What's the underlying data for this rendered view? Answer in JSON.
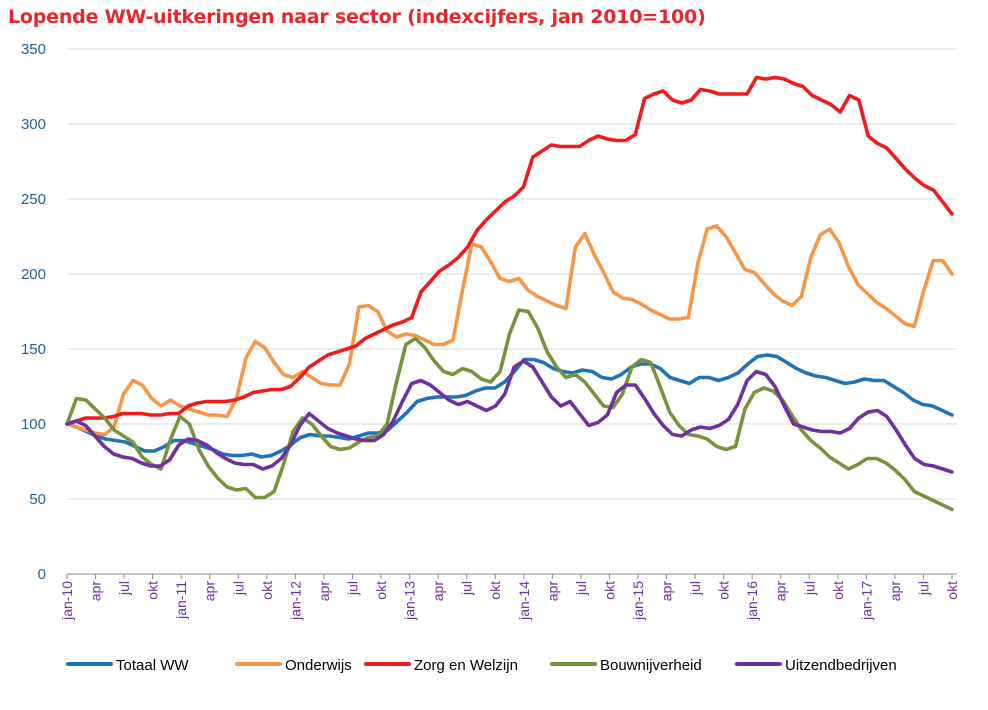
{
  "chart_data": {
    "type": "line",
    "title": "Lopende WW-uitkeringen naar sector (indexcijfers, jan 2010=100)",
    "xlabel": "",
    "ylabel": "",
    "ylim": [
      0,
      350
    ],
    "yticks": [
      0,
      50,
      100,
      150,
      200,
      250,
      300,
      350
    ],
    "grid": true,
    "legend": "bottom",
    "x_start": "jan-10",
    "x_end": "okt-17",
    "x_tick_labels": [
      "jan-10",
      "apr",
      "jul",
      "okt",
      "jan-11",
      "apr",
      "jul",
      "okt",
      "jan-12",
      "apr",
      "jul",
      "okt",
      "jan-13",
      "apr",
      "jul",
      "okt",
      "jan-14",
      "apr",
      "jul",
      "okt",
      "jan-15",
      "apr",
      "jul",
      "okt",
      "jan-16",
      "apr",
      "jul",
      "okt",
      "jan-17",
      "apr",
      "jul",
      "okt"
    ],
    "series": [
      {
        "name": "Totaal WW",
        "color": "#1f74b7",
        "values": [
          100,
          98,
          95,
          92,
          90,
          89,
          88,
          85,
          82,
          82,
          85,
          89,
          89,
          87,
          85,
          83,
          80,
          79,
          79,
          80,
          78,
          79,
          82,
          86,
          91,
          93,
          92,
          92,
          91,
          90,
          92,
          94,
          94,
          96,
          102,
          108,
          115,
          117,
          118,
          118,
          118,
          119,
          122,
          124,
          124,
          128,
          135,
          143,
          143,
          141,
          137,
          135,
          134,
          136,
          135,
          131,
          130,
          133,
          138,
          140,
          140,
          137,
          131,
          129,
          127,
          131,
          131,
          129,
          131,
          134,
          140,
          145,
          146,
          145,
          141,
          137,
          134,
          132,
          131,
          129,
          127,
          128,
          130,
          129,
          129,
          125,
          121,
          116,
          113,
          112,
          109,
          106
        ]
      },
      {
        "name": "Onderwijs",
        "color": "#f79646",
        "values": [
          100,
          98,
          96,
          94,
          93,
          98,
          120,
          129,
          126,
          117,
          112,
          116,
          112,
          110,
          108,
          106,
          106,
          105,
          117,
          144,
          155,
          151,
          141,
          133,
          131,
          135,
          131,
          127,
          126,
          126,
          140,
          178,
          179,
          175,
          162,
          158,
          160,
          159,
          156,
          153,
          153,
          156,
          189,
          220,
          218,
          208,
          197,
          195,
          197,
          189,
          185,
          182,
          179,
          177,
          218,
          227,
          213,
          201,
          188,
          184,
          183,
          180,
          176,
          173,
          170,
          170,
          171,
          207,
          230,
          232,
          225,
          214,
          203,
          201,
          194,
          187,
          182,
          179,
          185,
          211,
          226,
          230,
          221,
          205,
          193,
          187,
          181,
          177,
          172,
          167,
          165,
          189,
          209,
          209,
          200
        ]
      },
      {
        "name": "Zorg en Welzijn",
        "color": "#ee1c1c",
        "values": [
          100,
          102,
          104,
          104,
          104,
          105,
          107,
          107,
          107,
          106,
          106,
          107,
          107,
          112,
          114,
          115,
          115,
          115,
          116,
          118,
          121,
          122,
          123,
          123,
          125,
          131,
          138,
          142,
          146,
          148,
          150,
          152,
          157,
          160,
          163,
          166,
          168,
          171,
          188,
          195,
          202,
          206,
          211,
          218,
          229,
          236,
          242,
          248,
          252,
          258,
          278,
          282,
          286,
          285,
          285,
          285,
          289,
          292,
          290,
          289,
          289,
          293,
          317,
          320,
          322,
          316,
          314,
          316,
          323,
          322,
          320,
          320,
          320,
          320,
          331,
          330,
          331,
          330,
          327,
          325,
          319,
          316,
          313,
          308,
          319,
          316,
          292,
          287,
          284,
          277,
          270,
          264,
          259,
          256,
          248,
          240
        ]
      },
      {
        "name": "Bouwnijverheid",
        "color": "#77933c",
        "values": [
          100,
          117,
          116,
          110,
          104,
          96,
          92,
          88,
          78,
          73,
          70,
          90,
          105,
          100,
          83,
          72,
          64,
          58,
          56,
          57,
          51,
          51,
          55,
          73,
          95,
          104,
          100,
          92,
          85,
          83,
          84,
          88,
          91,
          92,
          100,
          128,
          153,
          157,
          151,
          142,
          135,
          133,
          137,
          135,
          130,
          128,
          135,
          160,
          176,
          175,
          164,
          148,
          138,
          131,
          133,
          128,
          120,
          112,
          111,
          120,
          138,
          143,
          141,
          125,
          108,
          99,
          93,
          92,
          90,
          85,
          83,
          85,
          110,
          121,
          124,
          122,
          116,
          106,
          96,
          89,
          84,
          78,
          74,
          70,
          73,
          77,
          77,
          74,
          69,
          63,
          55,
          52,
          49,
          46,
          43
        ]
      },
      {
        "name": "Uitzendbedrijven",
        "color": "#7030a0",
        "values": [
          100,
          102,
          99,
          92,
          85,
          80,
          78,
          77,
          74,
          72,
          72,
          76,
          86,
          90,
          89,
          86,
          81,
          77,
          74,
          73,
          73,
          70,
          72,
          77,
          86,
          99,
          107,
          102,
          97,
          94,
          92,
          90,
          89,
          89,
          93,
          102,
          115,
          127,
          129,
          126,
          121,
          116,
          113,
          115,
          112,
          109,
          112,
          120,
          138,
          142,
          138,
          128,
          118,
          112,
          115,
          107,
          99,
          101,
          106,
          121,
          126,
          126,
          117,
          107,
          99,
          93,
          92,
          96,
          98,
          97,
          99,
          103,
          113,
          129,
          135,
          133,
          125,
          112,
          100,
          98,
          96,
          95,
          95,
          94,
          97,
          104,
          108,
          109,
          105,
          96,
          86,
          77,
          73,
          72,
          70,
          68
        ]
      }
    ]
  }
}
